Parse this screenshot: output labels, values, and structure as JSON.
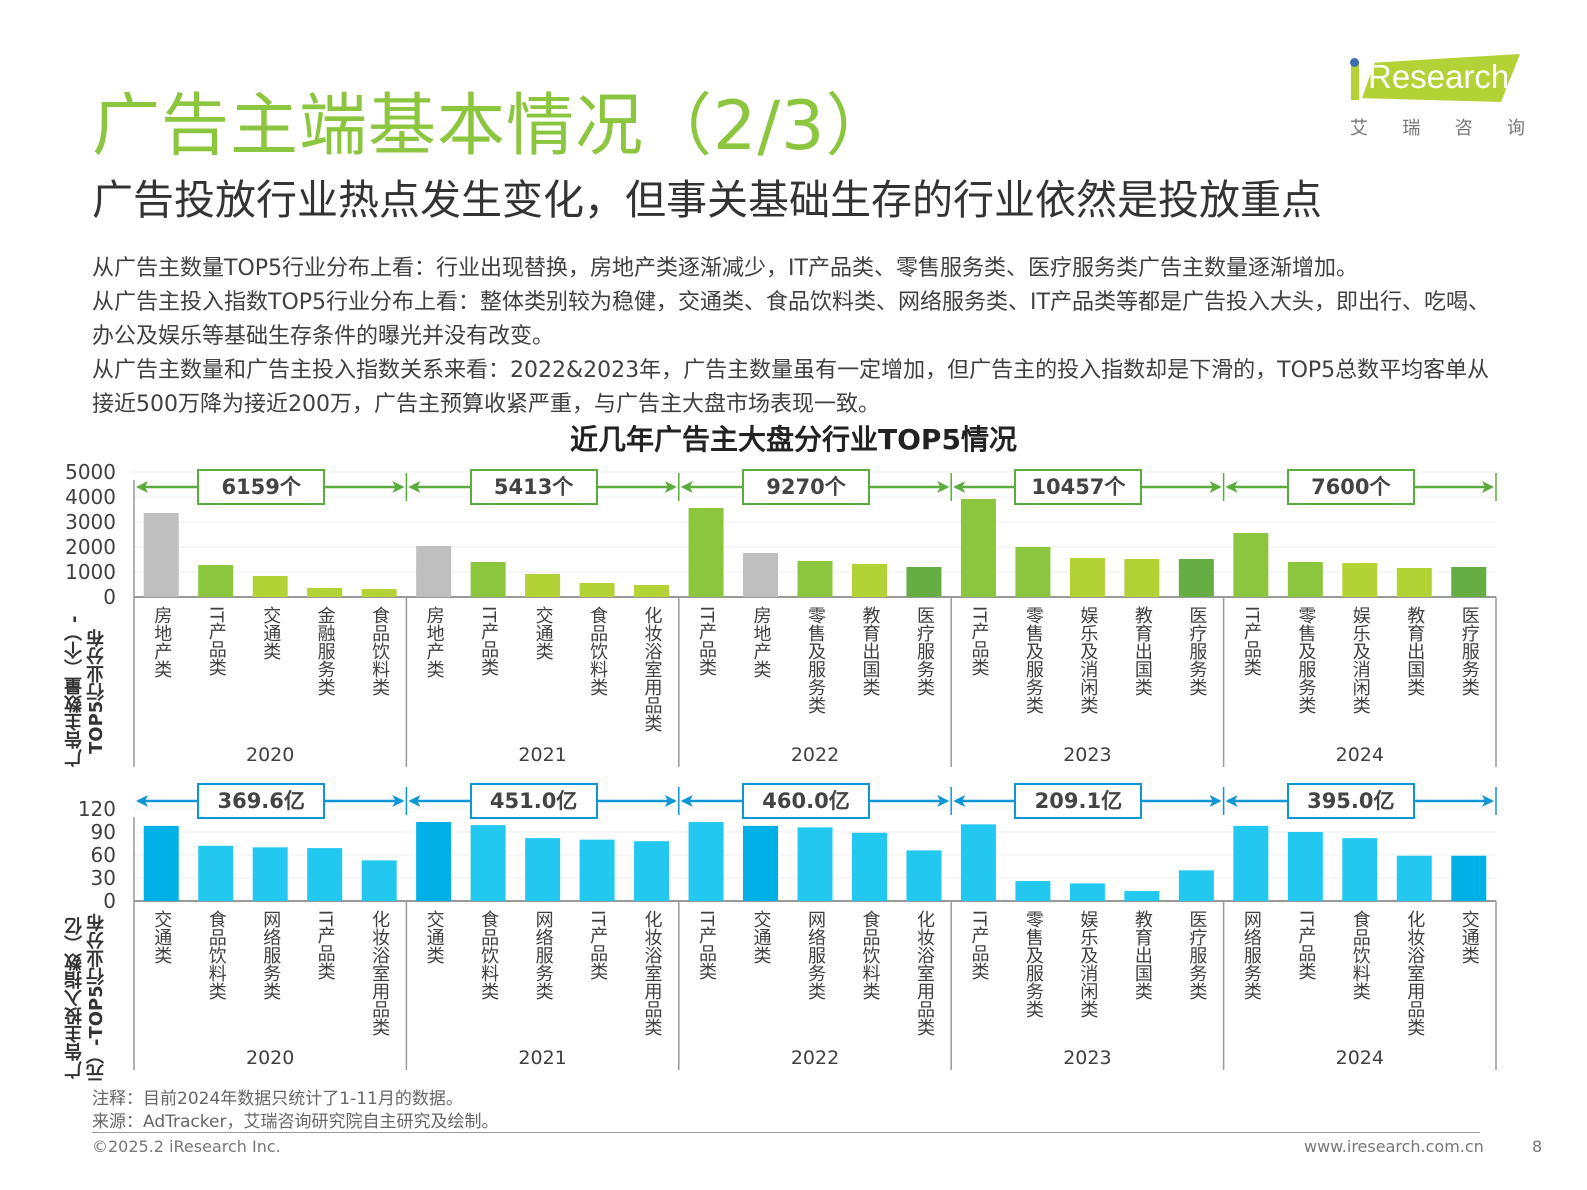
{
  "header": {
    "title": "广告主端基本情况（2/3）",
    "subtitle": "广告投放行业热点发生变化，但事关基础生存的行业依然是投放重点"
  },
  "logo": {
    "word": "Research",
    "cn": [
      "艾",
      "瑞",
      "咨",
      "询"
    ]
  },
  "paragraphs": [
    "从广告主数量TOP5行业分布上看：行业出现替换，房地产类逐渐减少，IT产品类、零售服务类、医疗服务类广告主数量逐渐增加。",
    "从广告主投入指数TOP5行业分布上看：整体类别较为稳健，交通类、食品饮料类、网络服务类、IT产品类等都是广告投入大头，即出行、吃喝、办公及娱乐等基础生存条件的曝光并没有改变。",
    "从广告主数量和广告主投入指数关系来看：2022&2023年，广告主数量虽有一定增加，但广告主的投入指数却是下滑的，TOP5总数平均客单从接近500万降为接近200万，广告主预算收紧严重，与广告主大盘市场表现一致。"
  ],
  "chart_data": [
    {
      "type": "bar",
      "title": "近几年广告主大盘分行业TOP5情况",
      "ylabel": "广告主数量（个）-TOP5行业分布",
      "ylim": [
        0,
        5000
      ],
      "yticks": [
        "0",
        "1000",
        "2000",
        "3000",
        "4000",
        "5000"
      ],
      "grid": true,
      "colors": {
        "gray": "#bfbfbf",
        "green": "#8cc63f",
        "lime": "#b2d235",
        "dark": "#66ad44",
        "bracket": "#5aac3c"
      },
      "groups": [
        {
          "year": "2020",
          "total": "6159个",
          "categories": [
            "房地产类",
            "IT产品类",
            "交通类",
            "金融服务类",
            "食品饮料类"
          ],
          "values": [
            3360,
            1280,
            840,
            360,
            320
          ],
          "colors": [
            "gray",
            "green",
            "lime",
            "lime",
            "lime"
          ]
        },
        {
          "year": "2021",
          "total": "5413个",
          "categories": [
            "房地产类",
            "IT产品类",
            "交通类",
            "食品饮料类",
            "化妆浴室用品类"
          ],
          "values": [
            2040,
            1400,
            920,
            560,
            480
          ],
          "colors": [
            "gray",
            "green",
            "lime",
            "lime",
            "lime"
          ]
        },
        {
          "year": "2022",
          "total": "9270个",
          "categories": [
            "IT产品类",
            "房地产类",
            "零售及服务类",
            "教育出国类",
            "医疗服务类"
          ],
          "values": [
            3560,
            1760,
            1440,
            1320,
            1200
          ],
          "colors": [
            "green",
            "gray",
            "green",
            "lime",
            "dark"
          ]
        },
        {
          "year": "2023",
          "total": "10457个",
          "categories": [
            "IT产品类",
            "零售及服务类",
            "娱乐及消闲类",
            "教育出国类",
            "医疗服务类"
          ],
          "values": [
            3920,
            2000,
            1560,
            1520,
            1520
          ],
          "colors": [
            "green",
            "green",
            "lime",
            "lime",
            "dark"
          ]
        },
        {
          "year": "2024",
          "total": "7600个",
          "categories": [
            "IT产品类",
            "零售及服务类",
            "娱乐及消闲类",
            "教育出国类",
            "医疗服务类"
          ],
          "values": [
            2560,
            1400,
            1360,
            1160,
            1200
          ],
          "colors": [
            "green",
            "green",
            "lime",
            "lime",
            "dark"
          ]
        }
      ]
    },
    {
      "type": "bar",
      "ylabel": "广告主投入指数（亿元）-TOP5行业分布",
      "ylim": [
        0,
        120
      ],
      "yticks": [
        "0",
        "30",
        "60",
        "90",
        "120"
      ],
      "grid": true,
      "colors": {
        "dark": "#00b0e6",
        "light": "#22c8f0",
        "bracket": "#0e96d6"
      },
      "groups": [
        {
          "year": "2020",
          "total": "369.6亿",
          "categories": [
            "交通类",
            "食品饮料类",
            "网络服务类",
            "IT产品类",
            "化妆浴室用品类"
          ],
          "values": [
            98,
            72,
            70,
            69,
            53
          ],
          "colors": [
            "dark",
            "light",
            "light",
            "light",
            "light"
          ]
        },
        {
          "year": "2021",
          "total": "451.0亿",
          "categories": [
            "交通类",
            "食品饮料类",
            "网络服务类",
            "IT产品类",
            "化妆浴室用品类"
          ],
          "values": [
            103,
            99,
            82,
            80,
            78
          ],
          "colors": [
            "dark",
            "light",
            "light",
            "light",
            "light"
          ]
        },
        {
          "year": "2022",
          "total": "460.0亿",
          "categories": [
            "IT产品类",
            "交通类",
            "网络服务类",
            "食品饮料类",
            "化妆浴室用品类"
          ],
          "values": [
            103,
            98,
            96,
            89,
            66
          ],
          "colors": [
            "light",
            "dark",
            "light",
            "light",
            "light"
          ]
        },
        {
          "year": "2023",
          "total": "209.1亿",
          "categories": [
            "IT产品类",
            "零售及服务类",
            "娱乐及消闲类",
            "教育出国类",
            "医疗服务类"
          ],
          "values": [
            100,
            26,
            23,
            13,
            40
          ],
          "colors": [
            "light",
            "light",
            "light",
            "light",
            "light"
          ]
        },
        {
          "year": "2024",
          "total": "395.0亿",
          "categories": [
            "网络服务类",
            "IT产品类",
            "食品饮料类",
            "化妆浴室用品类",
            "交通类"
          ],
          "values": [
            98,
            90,
            82,
            59,
            59
          ],
          "colors": [
            "light",
            "light",
            "light",
            "light",
            "dark"
          ]
        }
      ]
    }
  ],
  "notes": {
    "note": "注释：目前2024年数据只统计了1-11月的数据。",
    "source": "来源：AdTracker，艾瑞咨询研究院自主研究及绘制。"
  },
  "footer": {
    "copyright": "©2025.2 iResearch Inc.",
    "url": "www.iresearch.com.cn",
    "page": "8"
  }
}
